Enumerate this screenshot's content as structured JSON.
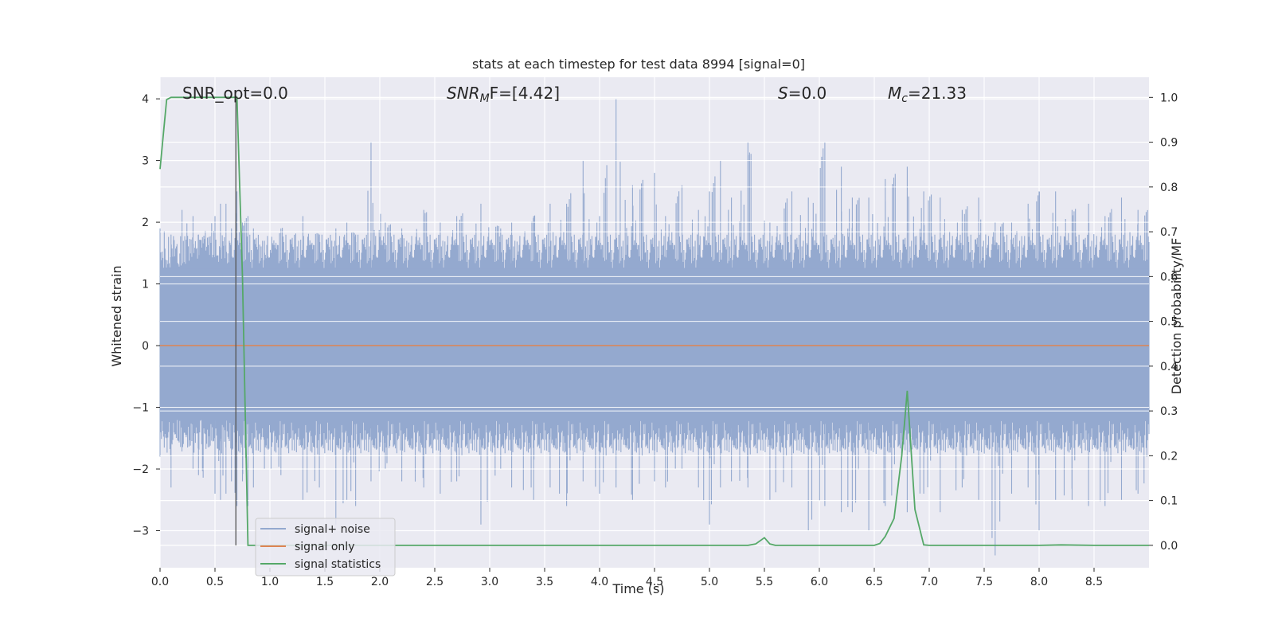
{
  "chart_data": {
    "type": "line",
    "title": "stats at each timestep for test data 8994 [signal=0]",
    "xlabel": "Time (s)",
    "ylabel_left": "Whitened strain",
    "ylabel_right": "Detection probability/MF",
    "xlim": [
      0.0,
      9.0
    ],
    "ylim_left": [
      -3.6,
      4.35
    ],
    "ylim_right": [
      -0.05,
      1.045
    ],
    "xticks": [
      "0.0",
      "0.5",
      "1.0",
      "1.5",
      "2.0",
      "2.5",
      "3.0",
      "3.5",
      "4.0",
      "4.5",
      "5.0",
      "5.5",
      "6.0",
      "6.5",
      "7.0",
      "7.5",
      "8.0",
      "8.5"
    ],
    "yticks_left": [
      "4",
      "3",
      "2",
      "1",
      "0",
      "−1",
      "−2",
      "−3"
    ],
    "yticks_right": [
      "1.0",
      "0.9",
      "0.8",
      "0.7",
      "0.6",
      "0.5",
      "0.4",
      "0.3",
      "0.2",
      "0.1",
      "0.0"
    ],
    "grid": true,
    "legend_position": "lower-left",
    "vline_x": 0.69,
    "annotations": {
      "snr_opt": "SNR_opt=0.0",
      "snr_mf_main": "SNR",
      "snr_mf_sub": "M",
      "snr_mf_rest": "F=[4.42]",
      "s_main": "S",
      "s_rest": "=0.0",
      "mc_main": "M",
      "mc_sub": "c",
      "mc_rest": "=21.33"
    },
    "series": [
      {
        "name": "signal+ noise",
        "color": "#94a9cf",
        "axis": "left",
        "band_envelope": {
          "upper_typical": 1.25,
          "lower_typical": -1.2,
          "x": [
            0.0,
            0.1,
            0.2,
            0.3,
            0.35,
            0.5,
            0.55,
            0.6,
            0.65,
            0.7,
            0.75,
            0.8,
            0.85,
            0.95,
            1.1,
            1.3,
            1.45,
            1.6,
            1.7,
            1.78,
            1.92,
            2.05,
            2.2,
            2.4,
            2.55,
            2.7,
            2.92,
            3.1,
            3.2,
            3.4,
            3.55,
            3.7,
            3.85,
            4.0,
            4.15,
            4.3,
            4.5,
            4.6,
            4.75,
            4.9,
            5.0,
            5.1,
            5.2,
            5.35,
            5.55,
            5.75,
            5.9,
            6.05,
            6.2,
            6.3,
            6.45,
            6.6,
            6.8,
            6.95,
            7.1,
            7.3,
            7.45,
            7.6,
            7.75,
            7.9,
            8.0,
            8.15,
            8.3,
            8.45,
            8.6,
            8.75,
            8.9
          ],
          "upper_peaks": [
            1.9,
            1.8,
            2.2,
            2.1,
            1.8,
            2.1,
            2.3,
            2.3,
            1.9,
            2.5,
            2.0,
            2.1,
            1.9,
            1.7,
            1.9,
            2.1,
            1.8,
            1.9,
            2.0,
            1.8,
            3.3,
            2.0,
            1.9,
            2.2,
            2.0,
            2.1,
            2.3,
            1.9,
            2.0,
            2.1,
            2.3,
            2.3,
            3.0,
            2.1,
            4.0,
            2.6,
            2.8,
            2.1,
            2.6,
            2.2,
            2.5,
            3.0,
            2.4,
            3.3,
            2.0,
            2.5,
            2.4,
            3.3,
            2.9,
            2.4,
            2.4,
            2.7,
            2.9,
            2.5,
            2.4,
            2.2,
            2.4,
            2.0,
            2.0,
            2.3,
            2.5,
            2.5,
            2.2,
            2.3,
            2.1,
            2.4,
            2.2
          ],
          "lower_peaks": [
            -1.8,
            -2.3,
            -1.6,
            -2.0,
            -2.1,
            -2.4,
            -2.5,
            -2.4,
            -2.2,
            -2.6,
            -2.2,
            -2.6,
            -2.3,
            -2.0,
            -2.1,
            -2.5,
            -2.3,
            -2.9,
            -2.5,
            -2.6,
            -2.2,
            -2.0,
            -2.2,
            -2.3,
            -2.4,
            -2.2,
            -2.9,
            -2.0,
            -2.3,
            -2.5,
            -2.3,
            -2.6,
            -2.2,
            -2.4,
            -2.3,
            -2.5,
            -2.2,
            -2.3,
            -2.0,
            -2.3,
            -2.9,
            -2.3,
            -2.2,
            -2.3,
            -2.5,
            -2.3,
            -3.0,
            -2.6,
            -2.7,
            -2.7,
            -3.0,
            -2.6,
            -2.7,
            -2.4,
            -2.7,
            -2.3,
            -2.5,
            -3.4,
            -2.4,
            -2.3,
            -3.0,
            -2.5,
            -2.5,
            -2.6,
            -2.6,
            -2.5,
            -2.4
          ]
        }
      },
      {
        "name": "signal only",
        "color": "#dd8452",
        "axis": "left",
        "x": [
          0.0,
          9.0
        ],
        "y": [
          0.0,
          0.0
        ]
      },
      {
        "name": "signal statistics",
        "color": "#55a868",
        "axis": "right",
        "x": [
          0.0,
          0.06,
          0.1,
          0.2,
          0.5,
          0.6,
          0.68,
          0.7,
          0.75,
          0.8,
          0.85,
          1.0,
          2.0,
          3.0,
          4.0,
          5.0,
          5.35,
          5.42,
          5.5,
          5.55,
          5.6,
          6.0,
          6.5,
          6.55,
          6.6,
          6.68,
          6.75,
          6.8,
          6.87,
          6.95,
          7.0,
          7.5,
          8.0,
          8.2,
          8.5,
          9.0
        ],
        "y": [
          0.84,
          0.995,
          1.0,
          1.0,
          1.0,
          1.0,
          1.0,
          1.0,
          0.6,
          0.0,
          0.0,
          0.0,
          0.0,
          0.0,
          0.0,
          0.0,
          0.0,
          0.003,
          0.017,
          0.003,
          0.0,
          0.0,
          0.0,
          0.004,
          0.02,
          0.06,
          0.2,
          0.345,
          0.08,
          0.001,
          0.0,
          0.0,
          0.0,
          0.001,
          0.0,
          0.0
        ]
      }
    ]
  }
}
